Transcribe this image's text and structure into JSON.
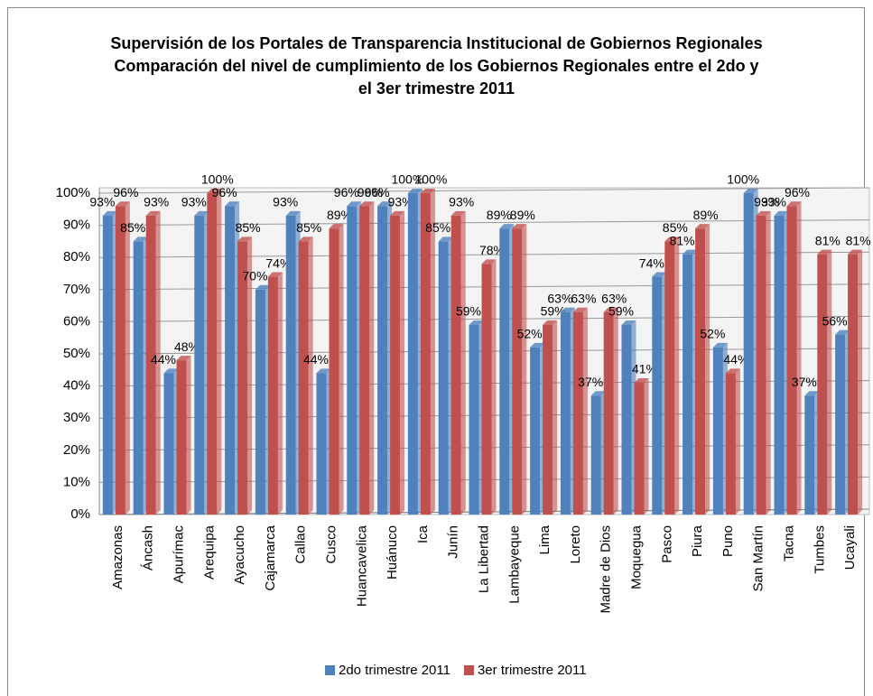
{
  "chart_data": {
    "type": "bar",
    "title": "Supervisión de los Portales de Transparencia Institucional de Gobiernos Regionales",
    "subtitle": "Comparación del nivel de cumplimiento de los Gobiernos Regionales entre el 2do y el 3er trimestre 2011",
    "categories": [
      "Amazonas",
      "Áncash",
      "Apurímac",
      "Arequipa",
      "Ayacucho",
      "Cajamarca",
      "Callao",
      "Cusco",
      "Huancavelica",
      "Huánuco",
      "Ica",
      "Junín",
      "La Libertad",
      "Lambayeque",
      "Lima",
      "Loreto",
      "Madre de Dios",
      "Moquegua",
      "Pasco",
      "Piura",
      "Puno",
      "San Martín",
      "Tacna",
      "Tumbes",
      "Ucayali"
    ],
    "series": [
      {
        "name": "2do trimestre 2011",
        "color": "#4f81bd",
        "values": [
          93,
          85,
          44,
          93,
          96,
          70,
          93,
          44,
          96,
          96,
          100,
          85,
          59,
          89,
          52,
          63,
          37,
          59,
          74,
          81,
          52,
          100,
          93,
          37,
          56
        ],
        "value_labels": [
          "93%",
          "85%",
          "44%",
          "93%",
          "96%",
          "70%",
          "93%",
          "44%",
          "96%",
          "96%",
          "100%",
          "85%",
          "59%",
          "89%",
          "52%",
          "63%",
          "37%",
          "59%",
          "74%",
          "81%",
          "52%",
          "100%",
          "93%",
          "37%",
          "56%"
        ]
      },
      {
        "name": "3er trimestre 2011",
        "color": "#c0504d",
        "values": [
          96,
          93,
          48,
          100,
          85,
          74,
          85,
          89,
          96,
          93,
          100,
          93,
          78,
          89,
          59,
          63,
          63,
          41,
          85,
          89,
          44,
          93,
          96,
          81,
          81
        ],
        "value_labels": [
          "96%",
          "93%",
          "48%",
          "100%",
          "85%",
          "74%",
          "85%",
          "89%",
          "96%",
          "93%",
          "100%",
          "93%",
          "78%",
          "89%",
          "59%",
          "63%",
          "63%",
          "41%",
          "85%",
          "89%",
          "44%",
          "93%",
          "96%",
          "81%",
          "81%"
        ]
      }
    ],
    "ylim": [
      0,
      100
    ],
    "yticks": [
      {
        "value": 0,
        "label": "0%"
      },
      {
        "value": 10,
        "label": "10%"
      },
      {
        "value": 20,
        "label": "20%"
      },
      {
        "value": 30,
        "label": "30%"
      },
      {
        "value": 40,
        "label": "40%"
      },
      {
        "value": 50,
        "label": "50%"
      },
      {
        "value": 60,
        "label": "60%"
      },
      {
        "value": 70,
        "label": "70%"
      },
      {
        "value": 80,
        "label": "80%"
      },
      {
        "value": 90,
        "label": "90%"
      },
      {
        "value": 100,
        "label": "100%"
      }
    ],
    "grid": true,
    "legend": "bottom"
  }
}
